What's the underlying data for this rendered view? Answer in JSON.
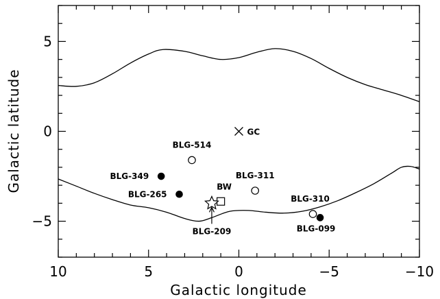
{
  "chart_data": {
    "type": "scatter",
    "xlabel": "Galactic longitude",
    "ylabel": "Galactic latitude",
    "xlim": [
      10,
      -10
    ],
    "ylim": [
      -7,
      7
    ],
    "x_ticks": [
      10,
      5,
      0,
      -5,
      -10
    ],
    "x_tick_labels": [
      "10",
      "5",
      "0",
      "−5",
      "−10"
    ],
    "y_ticks": [
      5,
      0,
      -5
    ],
    "y_tick_labels": [
      "5",
      "0",
      "−5"
    ],
    "grid": false,
    "curves": [
      {
        "name": "upper-boundary",
        "points": [
          [
            10,
            2.55
          ],
          [
            9,
            2.5
          ],
          [
            8,
            2.7
          ],
          [
            7,
            3.2
          ],
          [
            6,
            3.8
          ],
          [
            5,
            4.3
          ],
          [
            4.2,
            4.55
          ],
          [
            3,
            4.45
          ],
          [
            2,
            4.2
          ],
          [
            1,
            4.0
          ],
          [
            0,
            4.1
          ],
          [
            -1,
            4.4
          ],
          [
            -2,
            4.6
          ],
          [
            -3,
            4.45
          ],
          [
            -4,
            4.05
          ],
          [
            -5,
            3.5
          ],
          [
            -6,
            3.0
          ],
          [
            -7,
            2.6
          ],
          [
            -8,
            2.3
          ],
          [
            -9,
            2.0
          ],
          [
            -10,
            1.65
          ]
        ]
      },
      {
        "name": "lower-boundary",
        "points": [
          [
            10,
            -2.65
          ],
          [
            9,
            -3.05
          ],
          [
            8,
            -3.45
          ],
          [
            7,
            -3.8
          ],
          [
            6,
            -4.1
          ],
          [
            5,
            -4.25
          ],
          [
            4,
            -4.5
          ],
          [
            3,
            -4.85
          ],
          [
            2.2,
            -5.0
          ],
          [
            1.5,
            -4.8
          ],
          [
            0.5,
            -4.45
          ],
          [
            -0.5,
            -4.4
          ],
          [
            -1.5,
            -4.5
          ],
          [
            -2.5,
            -4.55
          ],
          [
            -3.5,
            -4.45
          ],
          [
            -4.5,
            -4.2
          ],
          [
            -5.5,
            -3.85
          ],
          [
            -6.5,
            -3.4
          ],
          [
            -7.5,
            -2.9
          ],
          [
            -8.5,
            -2.3
          ],
          [
            -9,
            -2.0
          ],
          [
            -9.5,
            -1.95
          ],
          [
            -10,
            -2.1
          ]
        ]
      }
    ],
    "points": [
      {
        "label": "GC",
        "x": 0,
        "y": 0,
        "marker": "cross"
      },
      {
        "label": "BLG-514",
        "x": 2.6,
        "y": -1.6,
        "marker": "open-circle"
      },
      {
        "label": "BLG-349",
        "x": 4.3,
        "y": -2.5,
        "marker": "filled-circle"
      },
      {
        "label": "BLG-265",
        "x": 3.3,
        "y": -3.5,
        "marker": "filled-circle"
      },
      {
        "label": "BLG-311",
        "x": -0.9,
        "y": -3.3,
        "marker": "open-circle"
      },
      {
        "label": "BW",
        "x": 1.0,
        "y": -3.9,
        "marker": "open-square"
      },
      {
        "label": "BLG-209",
        "x": 1.5,
        "y": -4.0,
        "marker": "star"
      },
      {
        "label": "BLG-310",
        "x": -4.1,
        "y": -4.6,
        "marker": "open-circle"
      },
      {
        "label": "BLG-099",
        "x": -4.5,
        "y": -4.8,
        "marker": "filled-circle"
      }
    ]
  }
}
